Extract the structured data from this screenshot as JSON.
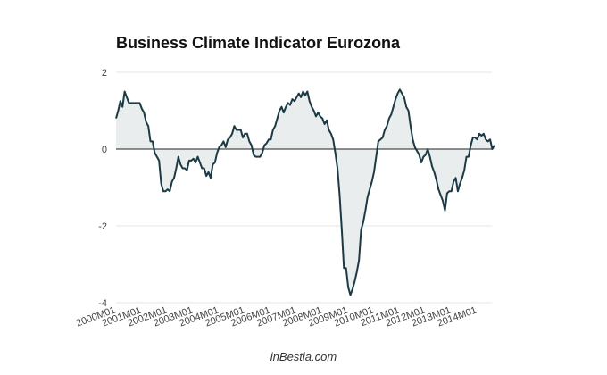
{
  "chart_data": {
    "type": "area",
    "title": "Business Climate Indicator Eurozona",
    "xlabel": "",
    "ylabel": "",
    "ylim": [
      -4,
      2
    ],
    "yticks": [
      2,
      0,
      -2,
      -4
    ],
    "x_tick_labels": [
      "2000M01",
      "2001M01",
      "2002M01",
      "2003M01",
      "2004M01",
      "2005M01",
      "2006M01",
      "2007M01",
      "2008M01",
      "2009M01",
      "2010M01",
      "2011M01",
      "2012M01",
      "2013M01",
      "2014M01"
    ],
    "x_start": "2000M01",
    "x_end": "2014M09",
    "grid": true,
    "legend": "none",
    "series": [
      {
        "values": [
          0.8,
          1.0,
          1.25,
          1.1,
          1.5,
          1.35,
          1.2,
          1.2,
          1.2,
          1.2,
          1.2,
          1.2,
          1.05,
          0.95,
          0.7,
          0.6,
          0.2,
          0.2,
          -0.1,
          -0.2,
          -0.3,
          -0.9,
          -1.1,
          -1.1,
          -1.05,
          -1.1,
          -0.85,
          -0.75,
          -0.5,
          -0.2,
          -0.4,
          -0.5,
          -0.5,
          -0.55,
          -0.3,
          -0.3,
          -0.25,
          -0.35,
          -0.2,
          -0.35,
          -0.5,
          -0.5,
          -0.7,
          -0.6,
          -0.75,
          -0.4,
          -0.35,
          -0.1,
          0.05,
          0.1,
          0.2,
          0.05,
          0.25,
          0.3,
          0.4,
          0.6,
          0.5,
          0.5,
          0.5,
          0.3,
          0.4,
          0.4,
          0.2,
          0.1,
          -0.15,
          -0.2,
          -0.2,
          -0.2,
          -0.1,
          0.1,
          0.15,
          0.25,
          0.25,
          0.5,
          0.6,
          0.8,
          1.0,
          1.1,
          0.95,
          1.1,
          1.2,
          1.15,
          1.3,
          1.25,
          1.35,
          1.45,
          1.35,
          1.5,
          1.4,
          1.5,
          1.25,
          1.1,
          1.0,
          0.85,
          0.95,
          0.85,
          0.8,
          0.65,
          0.75,
          0.5,
          0.4,
          0.25,
          -0.1,
          -0.5,
          -1.2,
          -2.1,
          -3.1,
          -3.1,
          -3.6,
          -3.8,
          -3.65,
          -3.45,
          -3.2,
          -2.9,
          -2.1,
          -1.9,
          -1.6,
          -1.25,
          -1.05,
          -0.85,
          -0.6,
          -0.2,
          0.2,
          0.25,
          0.3,
          0.5,
          0.6,
          0.8,
          0.9,
          1.1,
          1.3,
          1.45,
          1.55,
          1.45,
          1.35,
          1.1,
          1.0,
          0.6,
          0.25,
          0.05,
          -0.05,
          -0.15,
          -0.35,
          -0.2,
          -0.15,
          0.0,
          -0.2,
          -0.45,
          -0.6,
          -0.8,
          -1.05,
          -1.2,
          -1.35,
          -1.6,
          -1.15,
          -1.1,
          -1.1,
          -0.85,
          -0.75,
          -1.1,
          -0.9,
          -0.75,
          -0.55,
          -0.2,
          -0.2,
          0.1,
          0.3,
          0.3,
          0.25,
          0.4,
          0.35,
          0.4,
          0.25,
          0.2,
          0.25,
          0.0,
          0.1
        ]
      }
    ]
  }
}
